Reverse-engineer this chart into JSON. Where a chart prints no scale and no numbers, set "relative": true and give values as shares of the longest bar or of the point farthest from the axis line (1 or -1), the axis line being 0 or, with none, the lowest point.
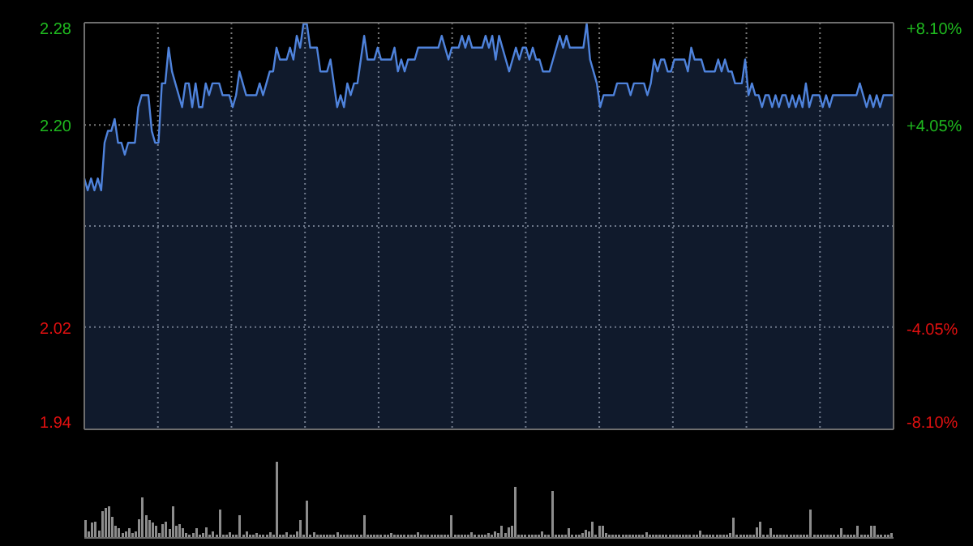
{
  "chart_data": [
    {
      "type": "area",
      "categories": [
        null,
        null,
        null,
        null,
        null,
        null,
        null,
        null,
        null,
        null,
        null,
        null,
        null,
        null,
        null,
        null,
        null,
        null,
        null,
        null,
        null,
        null,
        null,
        null,
        null,
        null,
        null,
        null,
        null,
        null,
        null,
        null,
        null,
        null,
        null,
        null,
        null,
        null,
        null,
        null,
        null,
        null,
        null,
        null,
        null,
        null,
        null,
        null,
        null,
        null,
        null,
        null,
        null,
        null,
        null,
        null,
        null,
        null,
        null,
        null,
        null,
        null,
        null,
        null,
        null,
        null,
        null,
        null,
        null,
        null,
        null,
        null,
        null,
        null,
        null,
        null,
        null,
        null,
        null,
        null,
        null,
        null,
        null,
        null,
        null,
        null,
        null,
        null,
        null,
        null,
        null,
        null,
        null,
        null,
        null,
        null,
        null,
        null,
        null,
        null,
        null,
        null,
        null,
        null,
        null,
        null,
        null,
        null,
        null,
        null,
        null,
        null,
        null,
        null,
        null,
        null,
        null,
        null,
        null,
        null,
        null,
        null,
        null,
        null,
        null,
        null,
        null,
        null,
        null,
        null,
        null,
        null,
        null,
        null,
        null,
        null,
        null,
        null,
        null,
        null,
        null,
        null,
        null,
        null,
        null,
        null,
        null,
        null,
        null,
        null,
        null,
        null,
        null,
        null,
        null,
        null,
        null,
        null,
        null,
        null,
        null,
        null,
        null,
        null,
        null,
        null,
        null,
        null,
        null,
        null,
        null,
        null,
        null,
        null,
        null,
        null,
        null,
        null,
        null,
        null,
        null,
        null,
        null,
        null,
        null,
        null,
        null,
        null,
        null,
        null,
        null,
        null,
        null,
        null,
        null,
        null,
        null,
        null,
        null,
        null,
        null,
        null,
        null,
        null,
        null,
        null,
        null,
        null,
        null,
        null,
        null,
        null,
        null,
        null,
        null,
        null,
        null,
        null,
        null,
        null,
        null,
        null,
        null,
        null,
        null,
        null,
        null,
        null,
        null,
        null,
        null,
        null,
        null,
        null,
        null,
        null,
        null,
        null,
        null,
        null,
        null
      ],
      "series": [
        {
          "color": "#4f83dc",
          "values": [
            2.15,
            2.14,
            2.15,
            2.14,
            2.15,
            2.14,
            2.18,
            2.19,
            2.19,
            2.2,
            2.18,
            2.18,
            2.17,
            2.18,
            2.18,
            2.18,
            2.21,
            2.22,
            2.22,
            2.22,
            2.19,
            2.18,
            2.18,
            2.23,
            2.23,
            2.26,
            2.24,
            2.23,
            2.22,
            2.21,
            2.23,
            2.23,
            2.21,
            2.23,
            2.21,
            2.21,
            2.23,
            2.22,
            2.23,
            2.23,
            2.23,
            2.22,
            2.22,
            2.22,
            2.21,
            2.22,
            2.24,
            2.23,
            2.22,
            2.22,
            2.22,
            2.22,
            2.23,
            2.22,
            2.23,
            2.24,
            2.24,
            2.26,
            2.25,
            2.25,
            2.25,
            2.26,
            2.25,
            2.27,
            2.26,
            2.28,
            2.28,
            2.26,
            2.26,
            2.26,
            2.24,
            2.24,
            2.24,
            2.25,
            2.23,
            2.21,
            2.22,
            2.21,
            2.23,
            2.22,
            2.23,
            2.23,
            2.25,
            2.27,
            2.25,
            2.25,
            2.25,
            2.26,
            2.25,
            2.25,
            2.25,
            2.25,
            2.26,
            2.24,
            2.25,
            2.24,
            2.25,
            2.25,
            2.25,
            2.26,
            2.26,
            2.26,
            2.26,
            2.26,
            2.26,
            2.26,
            2.27,
            2.26,
            2.25,
            2.26,
            2.26,
            2.26,
            2.27,
            2.26,
            2.27,
            2.26,
            2.26,
            2.26,
            2.26,
            2.27,
            2.26,
            2.27,
            2.25,
            2.27,
            2.26,
            2.25,
            2.24,
            2.25,
            2.26,
            2.25,
            2.26,
            2.26,
            2.25,
            2.26,
            2.25,
            2.25,
            2.24,
            2.24,
            2.24,
            2.25,
            2.26,
            2.27,
            2.26,
            2.27,
            2.26,
            2.26,
            2.26,
            2.26,
            2.26,
            2.28,
            2.25,
            2.24,
            2.23,
            2.21,
            2.22,
            2.22,
            2.22,
            2.22,
            2.23,
            2.23,
            2.23,
            2.23,
            2.22,
            2.23,
            2.23,
            2.23,
            2.23,
            2.22,
            2.23,
            2.25,
            2.24,
            2.25,
            2.25,
            2.24,
            2.24,
            2.25,
            2.25,
            2.25,
            2.25,
            2.24,
            2.26,
            2.25,
            2.25,
            2.25,
            2.24,
            2.24,
            2.24,
            2.24,
            2.25,
            2.24,
            2.25,
            2.24,
            2.24,
            2.23,
            2.23,
            2.23,
            2.25,
            2.22,
            2.23,
            2.22,
            2.22,
            2.21,
            2.22,
            2.22,
            2.21,
            2.22,
            2.21,
            2.22,
            2.22,
            2.21,
            2.22,
            2.21,
            2.22,
            2.21,
            2.23,
            2.21,
            2.22,
            2.22,
            2.22,
            2.21,
            2.22,
            2.21,
            2.22,
            2.22,
            2.22,
            2.22,
            2.22,
            2.22,
            2.22,
            2.22,
            2.23,
            2.22,
            2.21,
            2.22,
            2.21,
            2.22,
            2.21,
            2.22,
            2.22,
            2.22,
            2.22
          ]
        }
      ],
      "ylim": [
        1.939,
        2.281
      ],
      "yticks": [
        {
          "value": 1.939,
          "label": "1.94"
        },
        {
          "value": 2.025,
          "label": "2.02"
        },
        {
          "value": 2.11,
          "label": null
        },
        {
          "value": 2.195,
          "label": "2.20"
        },
        {
          "value": 2.281,
          "label": "2.28"
        }
      ],
      "y2lim": [
        -8.1,
        8.1
      ],
      "y2ticks": [
        {
          "value": -8.1,
          "label": "-8.10%"
        },
        {
          "value": -4.05,
          "label": "-4.05%"
        },
        {
          "value": 0,
          "label": null
        },
        {
          "value": 4.05,
          "label": "+4.05%"
        },
        {
          "value": 8.1,
          "label": "+8.10%"
        }
      ],
      "tick_labels": "y",
      "grid": true
    },
    {
      "type": "bar",
      "relative": true,
      "tick_labels": false,
      "categories": [
        null,
        null,
        null,
        null,
        null,
        null,
        null,
        null,
        null,
        null,
        null,
        null,
        null,
        null,
        null,
        null,
        null,
        null,
        null,
        null,
        null,
        null,
        null,
        null,
        null,
        null,
        null,
        null,
        null,
        null,
        null,
        null,
        null,
        null,
        null,
        null,
        null,
        null,
        null,
        null,
        null,
        null,
        null,
        null,
        null,
        null,
        null,
        null,
        null,
        null,
        null,
        null,
        null,
        null,
        null,
        null,
        null,
        null,
        null,
        null,
        null,
        null,
        null,
        null,
        null,
        null,
        null,
        null,
        null,
        null,
        null,
        null,
        null,
        null,
        null,
        null,
        null,
        null,
        null,
        null,
        null,
        null,
        null,
        null,
        null,
        null,
        null,
        null,
        null,
        null,
        null,
        null,
        null,
        null,
        null,
        null,
        null,
        null,
        null,
        null,
        null,
        null,
        null,
        null,
        null,
        null,
        null,
        null,
        null,
        null,
        null,
        null,
        null,
        null,
        null,
        null,
        null,
        null,
        null,
        null,
        null,
        null,
        null,
        null,
        null,
        null,
        null,
        null,
        null,
        null,
        null,
        null,
        null,
        null,
        null,
        null,
        null,
        null,
        null,
        null,
        null,
        null,
        null,
        null,
        null,
        null,
        null,
        null,
        null,
        null,
        null,
        null,
        null,
        null,
        null,
        null,
        null,
        null,
        null,
        null,
        null,
        null,
        null,
        null,
        null,
        null,
        null,
        null,
        null,
        null,
        null,
        null,
        null,
        null,
        null,
        null,
        null,
        null,
        null,
        null,
        null,
        null,
        null,
        null,
        null,
        null,
        null,
        null,
        null,
        null,
        null,
        null,
        null,
        null,
        null,
        null,
        null,
        null,
        null,
        null,
        null,
        null,
        null,
        null,
        null,
        null,
        null,
        null,
        null,
        null,
        null,
        null,
        null,
        null,
        null,
        null,
        null,
        null,
        null,
        null,
        null,
        null,
        null,
        null,
        null,
        null,
        null,
        null,
        null,
        null,
        null,
        null,
        null,
        null,
        null,
        null,
        null,
        null,
        null,
        null,
        null
      ],
      "series": [
        {
          "color": "#8c8c8c",
          "values": [
            0.23,
            0.08,
            0.2,
            0.21,
            0.1,
            0.35,
            0.39,
            0.41,
            0.28,
            0.16,
            0.13,
            0.06,
            0.09,
            0.13,
            0.06,
            0.08,
            0.25,
            0.53,
            0.3,
            0.23,
            0.2,
            0.16,
            0.06,
            0.18,
            0.21,
            0.12,
            0.42,
            0.16,
            0.18,
            0.13,
            0.06,
            0.04,
            0.06,
            0.13,
            0.04,
            0.06,
            0.14,
            0.04,
            0.09,
            0.04,
            0.37,
            0.04,
            0.04,
            0.07,
            0.04,
            0.04,
            0.3,
            0.04,
            0.09,
            0.04,
            0.04,
            0.06,
            0.04,
            0.04,
            0.04,
            0.07,
            0.04,
            1,
            0.04,
            0.04,
            0.07,
            0.04,
            0.04,
            0.09,
            0.23,
            0.04,
            0.49,
            0.04,
            0.07,
            0.04,
            0.04,
            0.04,
            0.04,
            0.04,
            0.04,
            0.07,
            0.04,
            0.04,
            0.04,
            0.04,
            0.04,
            0.04,
            0.04,
            0.3,
            0.04,
            0.04,
            0.04,
            0.04,
            0.04,
            0.04,
            0.04,
            0.06,
            0.04,
            0.04,
            0.04,
            0.04,
            0.04,
            0.04,
            0.04,
            0.07,
            0.04,
            0.04,
            0.04,
            0.04,
            0.04,
            0.04,
            0.04,
            0.04,
            0.04,
            0.3,
            0.04,
            0.04,
            0.04,
            0.04,
            0.04,
            0.07,
            0.04,
            0.04,
            0.04,
            0.04,
            0.06,
            0.04,
            0.09,
            0.06,
            0.16,
            0.06,
            0.14,
            0.16,
            0.67,
            0.04,
            0.04,
            0.04,
            0.04,
            0.04,
            0.04,
            0.04,
            0.09,
            0.04,
            0.04,
            0.62,
            0.04,
            0.04,
            0.04,
            0.04,
            0.13,
            0.04,
            0.04,
            0.04,
            0.06,
            0.11,
            0.08,
            0.21,
            0.04,
            0.16,
            0.16,
            0.06,
            0.04,
            0.04,
            0.04,
            0.04,
            0.04,
            0.04,
            0.04,
            0.04,
            0.04,
            0.04,
            0.04,
            0.07,
            0.04,
            0.04,
            0.04,
            0.04,
            0.04,
            0.04,
            0.04,
            0.04,
            0.04,
            0.04,
            0.04,
            0.04,
            0.04,
            0.04,
            0.04,
            0.1,
            0.04,
            0.04,
            0.04,
            0.04,
            0.04,
            0.04,
            0.04,
            0.04,
            0.06,
            0.27,
            0.04,
            0.04,
            0.04,
            0.04,
            0.04,
            0.04,
            0.14,
            0.21,
            0.04,
            0.04,
            0.13,
            0.04,
            0.04,
            0.04,
            0.04,
            0.04,
            0.04,
            0.04,
            0.04,
            0.04,
            0.04,
            0.04,
            0.37,
            0.04,
            0.04,
            0.04,
            0.04,
            0.04,
            0.04,
            0.04,
            0.04,
            0.13,
            0.04,
            0.04,
            0.04,
            0.04,
            0.16,
            0.04,
            0.04,
            0.04,
            0.16,
            0.16,
            0.04,
            0.04,
            0.04,
            0.04,
            0.06
          ]
        }
      ]
    }
  ]
}
